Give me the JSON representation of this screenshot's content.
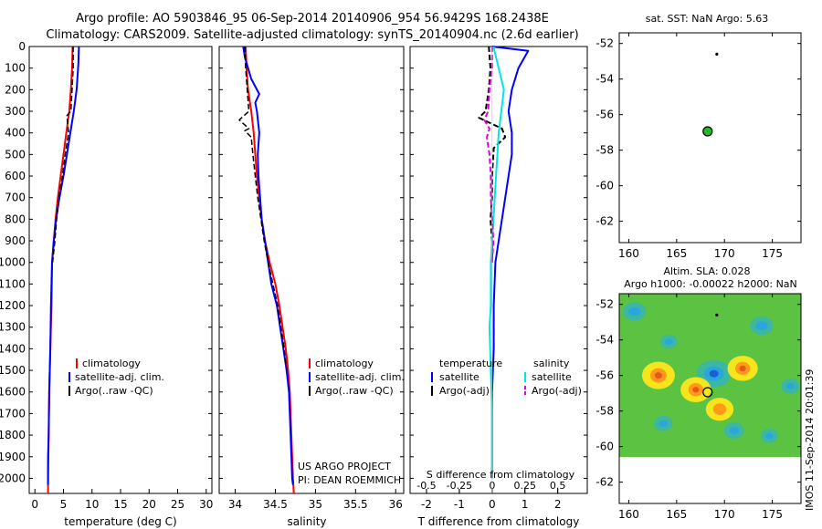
{
  "header": {
    "title_line1": "Argo profile: AO 5903846_95 06-Sep-2014 20140906_954 56.9429S 168.2438E",
    "title_line2": "Climatology: CARS2009. Satellite-adjusted climatology: synTS_20140904.nc (2.6d earlier)"
  },
  "colors": {
    "climatology": "#ff0000",
    "satellite": "#0000ff",
    "argo": "#000000",
    "satellite_diff": "#00e5e5",
    "argo_salinity_diff": "#e000e0",
    "float_marker": "#22bb22"
  },
  "chart_data": [
    {
      "type": "line",
      "name": "temperature-panel",
      "xlabel": "temperature (deg C)",
      "xlim": [
        -1,
        31
      ],
      "xticks": [
        0,
        5,
        10,
        15,
        20,
        25,
        30
      ],
      "ylim": [
        0,
        2070
      ],
      "yticks": [
        0,
        100,
        200,
        300,
        400,
        500,
        600,
        700,
        800,
        900,
        1000,
        1100,
        1200,
        1300,
        1400,
        1500,
        1600,
        1700,
        1800,
        1900,
        2000
      ],
      "legend": [
        "climatology",
        "satellite-adj. clim.",
        "Argo(..raw -QC)"
      ],
      "series": [
        {
          "name": "climatology",
          "points": [
            [
              6.6,
              0
            ],
            [
              6.5,
              100
            ],
            [
              6.3,
              200
            ],
            [
              6.0,
              300
            ],
            [
              5.5,
              400
            ],
            [
              5.0,
              500
            ],
            [
              4.5,
              600
            ],
            [
              4.0,
              700
            ],
            [
              3.6,
              800
            ],
            [
              3.3,
              900
            ],
            [
              3.0,
              1000
            ],
            [
              2.9,
              1200
            ],
            [
              2.7,
              1400
            ],
            [
              2.5,
              1600
            ],
            [
              2.4,
              1800
            ],
            [
              2.3,
              2000
            ],
            [
              2.3,
              2070
            ]
          ]
        },
        {
          "name": "satellite-adj. clim.",
          "points": [
            [
              7.7,
              0
            ],
            [
              7.6,
              80
            ],
            [
              7.3,
              200
            ],
            [
              6.8,
              300
            ],
            [
              6.2,
              400
            ],
            [
              5.6,
              500
            ],
            [
              5.0,
              600
            ],
            [
              4.3,
              700
            ],
            [
              3.7,
              800
            ],
            [
              3.3,
              900
            ],
            [
              3.0,
              1000
            ],
            [
              2.8,
              1200
            ],
            [
              2.7,
              1400
            ],
            [
              2.5,
              1600
            ],
            [
              2.4,
              1800
            ],
            [
              2.3,
              1900
            ],
            [
              2.3,
              2030
            ]
          ]
        },
        {
          "name": "Argo(..raw -QC)",
          "points": [
            [
              6.7,
              0
            ],
            [
              6.7,
              100
            ],
            [
              6.5,
              200
            ],
            [
              6.3,
              300
            ],
            [
              5.6,
              320
            ],
            [
              5.9,
              400
            ],
            [
              5.3,
              500
            ],
            [
              4.8,
              600
            ],
            [
              4.2,
              700
            ],
            [
              3.8,
              800
            ],
            [
              3.5,
              900
            ],
            [
              3.1,
              1000
            ]
          ]
        }
      ]
    },
    {
      "type": "line",
      "name": "salinity-panel",
      "xlabel": "salinity",
      "xlim": [
        33.8,
        36.1
      ],
      "xticks": [
        34,
        34.5,
        35,
        35.5,
        36
      ],
      "xticklabels": [
        "34",
        "34.5",
        "35",
        "35.5",
        "36"
      ],
      "ylim": [
        0,
        2070
      ],
      "legend": [
        "climatology",
        "satellite-adj. clim.",
        "Argo(..raw -QC)"
      ],
      "annotations": [
        "US ARGO PROJECT",
        "PI: DEAN ROEMMICH"
      ],
      "series": [
        {
          "name": "climatology",
          "points": [
            [
              34.13,
              0
            ],
            [
              34.14,
              100
            ],
            [
              34.16,
              200
            ],
            [
              34.2,
              300
            ],
            [
              34.23,
              400
            ],
            [
              34.25,
              500
            ],
            [
              34.27,
              600
            ],
            [
              34.3,
              700
            ],
            [
              34.33,
              800
            ],
            [
              34.37,
              900
            ],
            [
              34.43,
              1000
            ],
            [
              34.5,
              1100
            ],
            [
              34.55,
              1200
            ],
            [
              34.59,
              1300
            ],
            [
              34.63,
              1400
            ],
            [
              34.66,
              1500
            ],
            [
              34.68,
              1600
            ],
            [
              34.7,
              1800
            ],
            [
              34.72,
              2000
            ],
            [
              34.73,
              2070
            ]
          ]
        },
        {
          "name": "satellite-adj. clim.",
          "points": [
            [
              34.1,
              0
            ],
            [
              34.12,
              50
            ],
            [
              34.16,
              100
            ],
            [
              34.2,
              150
            ],
            [
              34.3,
              220
            ],
            [
              34.25,
              260
            ],
            [
              34.27,
              300
            ],
            [
              34.3,
              400
            ],
            [
              34.28,
              500
            ],
            [
              34.29,
              600
            ],
            [
              34.31,
              700
            ],
            [
              34.33,
              800
            ],
            [
              34.37,
              900
            ],
            [
              34.41,
              1000
            ],
            [
              34.45,
              1100
            ],
            [
              34.52,
              1200
            ],
            [
              34.56,
              1300
            ],
            [
              34.6,
              1400
            ],
            [
              34.64,
              1500
            ],
            [
              34.67,
              1600
            ],
            [
              34.69,
              1800
            ],
            [
              34.71,
              2000
            ],
            [
              34.72,
              2030
            ]
          ]
        },
        {
          "name": "Argo(..raw -QC)",
          "points": [
            [
              34.12,
              0
            ],
            [
              34.13,
              100
            ],
            [
              34.15,
              200
            ],
            [
              34.17,
              300
            ],
            [
              34.05,
              340
            ],
            [
              34.17,
              380
            ],
            [
              34.12,
              390
            ],
            [
              34.2,
              420
            ],
            [
              34.22,
              500
            ],
            [
              34.25,
              600
            ],
            [
              34.28,
              700
            ],
            [
              34.32,
              800
            ],
            [
              34.36,
              900
            ],
            [
              34.41,
              1000
            ],
            [
              34.47,
              1100
            ],
            [
              34.53,
              1200
            ],
            [
              34.57,
              1300
            ],
            [
              34.61,
              1400
            ],
            [
              34.64,
              1500
            ]
          ]
        }
      ]
    },
    {
      "type": "line",
      "name": "difference-panel",
      "xlabel": "T difference from climatology",
      "xlim": [
        -2.5,
        2.9
      ],
      "xticks": [
        -2,
        -1,
        0,
        1,
        2
      ],
      "s_xlabel": "S difference from climatology",
      "s_xlim": [
        -0.625,
        0.725
      ],
      "s_xticks": [
        -0.5,
        -0.25,
        0,
        0.25,
        0.5
      ],
      "s_xticklabels": [
        "-0.5",
        "-0.25",
        "0",
        "0.25",
        "0.5"
      ],
      "ylim": [
        0,
        2070
      ],
      "legend_titles": [
        "temperature",
        "salinity"
      ],
      "legend_temperature": [
        "satellite",
        "Argo(-adj)"
      ],
      "legend_salinity": [
        "satellite",
        "Argo(-adj)"
      ],
      "series": [
        {
          "name": "temperature satellite",
          "unit": "degC",
          "points": [
            [
              0.0,
              0
            ],
            [
              1.1,
              20
            ],
            [
              0.8,
              100
            ],
            [
              0.6,
              200
            ],
            [
              0.5,
              300
            ],
            [
              0.6,
              400
            ],
            [
              0.6,
              500
            ],
            [
              0.5,
              600
            ],
            [
              0.4,
              700
            ],
            [
              0.3,
              800
            ],
            [
              0.2,
              900
            ],
            [
              0.1,
              1000
            ],
            [
              0.05,
              1200
            ],
            [
              0.05,
              1400
            ],
            [
              0.0,
              1600
            ],
            [
              0.0,
              2000
            ]
          ]
        },
        {
          "name": "temperature Argo(-adj)",
          "unit": "degC",
          "points": [
            [
              -0.1,
              0
            ],
            [
              -0.05,
              100
            ],
            [
              -0.1,
              200
            ],
            [
              -0.2,
              300
            ],
            [
              -0.4,
              330
            ],
            [
              0.3,
              380
            ],
            [
              0.4,
              420
            ],
            [
              0.05,
              470
            ],
            [
              0.0,
              600
            ],
            [
              0.0,
              700
            ],
            [
              -0.05,
              800
            ],
            [
              0.0,
              900
            ],
            [
              0.0,
              1000
            ]
          ]
        },
        {
          "name": "salinity satellite",
          "unit": "psu",
          "points": [
            [
              0.01,
              0
            ],
            [
              0.05,
              100
            ],
            [
              0.09,
              200
            ],
            [
              0.07,
              300
            ],
            [
              0.05,
              400
            ],
            [
              0.04,
              500
            ],
            [
              0.03,
              600
            ],
            [
              0.02,
              700
            ],
            [
              0.01,
              800
            ],
            [
              0.0,
              900
            ],
            [
              -0.01,
              1000
            ],
            [
              -0.01,
              1200
            ],
            [
              -0.02,
              1300
            ],
            [
              -0.01,
              1500
            ],
            [
              0.0,
              1700
            ],
            [
              0.0,
              2000
            ]
          ]
        },
        {
          "name": "salinity Argo(-adj)",
          "unit": "psu",
          "points": [
            [
              0.0,
              0
            ],
            [
              0.0,
              100
            ],
            [
              -0.02,
              200
            ],
            [
              -0.03,
              300
            ],
            [
              -0.06,
              340
            ],
            [
              -0.02,
              380
            ],
            [
              -0.04,
              420
            ],
            [
              -0.02,
              500
            ],
            [
              -0.01,
              600
            ],
            [
              -0.01,
              700
            ],
            [
              0.0,
              800
            ],
            [
              0.01,
              900
            ],
            [
              0.0,
              1000
            ]
          ]
        }
      ]
    },
    {
      "type": "scatter",
      "name": "sst-map",
      "title": "sat. SST: NaN Argo: 5.63",
      "xlim": [
        159,
        178
      ],
      "ylim": [
        -63.2,
        -51.4
      ],
      "xticks": [
        160,
        165,
        170,
        175
      ],
      "yticks": [
        -52,
        -54,
        -56,
        -58,
        -60,
        -62
      ],
      "points": [
        {
          "label": "float",
          "x": 168.24,
          "y": -56.94
        },
        {
          "label": "previous",
          "x": 169.2,
          "y": -52.6
        }
      ]
    },
    {
      "type": "heatmap",
      "name": "sla-map",
      "title_line1": "Altim. SLA: 0.028",
      "title_line2": "Argo h1000: -0.00022 h2000: NaN",
      "xlim": [
        159,
        178
      ],
      "ylim": [
        -63.2,
        -51.4
      ],
      "xticks": [
        160,
        165,
        170,
        175
      ],
      "yticks": [
        -52,
        -54,
        -56,
        -58,
        -60,
        -62
      ],
      "data_south_limit": -60.1,
      "anomalies": [
        {
          "lon": 168.9,
          "lat": -55.9,
          "value": -1.0
        },
        {
          "lon": 167.0,
          "lat": -56.8,
          "value": 0.9
        },
        {
          "lon": 163.1,
          "lat": -56.0,
          "value": 1.0
        },
        {
          "lon": 171.9,
          "lat": -55.6,
          "value": 0.9
        },
        {
          "lon": 169.5,
          "lat": -57.9,
          "value": 0.8
        },
        {
          "lon": 160.6,
          "lat": -52.4,
          "value": -0.6
        },
        {
          "lon": 173.9,
          "lat": -53.2,
          "value": -0.6
        },
        {
          "lon": 164.2,
          "lat": -54.1,
          "value": -0.4
        },
        {
          "lon": 171.0,
          "lat": -59.1,
          "value": -0.5
        },
        {
          "lon": 163.6,
          "lat": -58.7,
          "value": -0.45
        },
        {
          "lon": 176.9,
          "lat": -56.6,
          "value": -0.45
        },
        {
          "lon": 174.7,
          "lat": -59.4,
          "value": -0.4
        }
      ],
      "points": [
        {
          "label": "float",
          "x": 168.24,
          "y": -56.94
        },
        {
          "label": "previous",
          "x": 169.2,
          "y": -52.6
        }
      ]
    }
  ],
  "footer": {
    "watermark": "IMOS 11-Sep-2014 20:01:39"
  }
}
